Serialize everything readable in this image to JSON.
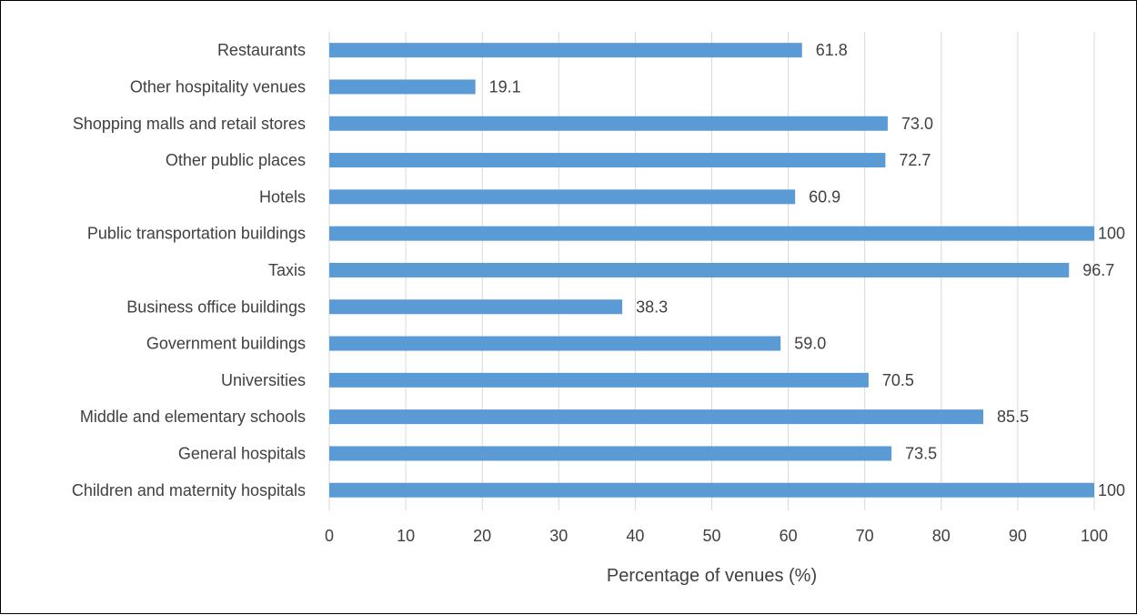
{
  "chart_data": {
    "type": "bar",
    "orientation": "horizontal",
    "categories": [
      "Restaurants",
      "Other hospitality venues",
      "Shopping malls and retail stores",
      "Other public places",
      "Hotels",
      "Public transportation buildings",
      "Taxis",
      "Business office buildings",
      "Government buildings",
      "Universities",
      "Middle and elementary schools",
      "General hospitals",
      "Children and maternity hospitals"
    ],
    "values": [
      61.8,
      19.1,
      73.0,
      72.7,
      60.9,
      100,
      96.7,
      38.3,
      59.0,
      70.5,
      85.5,
      73.5,
      100
    ],
    "value_labels": [
      "61.8",
      "19.1",
      "73.0",
      "72.7",
      "60.9",
      "100",
      "96.7",
      "38.3",
      "59.0",
      "70.5",
      "85.5",
      "73.5",
      "100"
    ],
    "xlabel": "Percentage of venues (%)",
    "xlim": [
      0,
      100
    ],
    "xticks": [
      "0",
      "10",
      "20",
      "30",
      "40",
      "50",
      "60",
      "70",
      "80",
      "90",
      "100"
    ],
    "grid": "vertical",
    "legend": "none",
    "bar_color": "#5B9BD5",
    "grid_color": "#D9D9D9"
  }
}
